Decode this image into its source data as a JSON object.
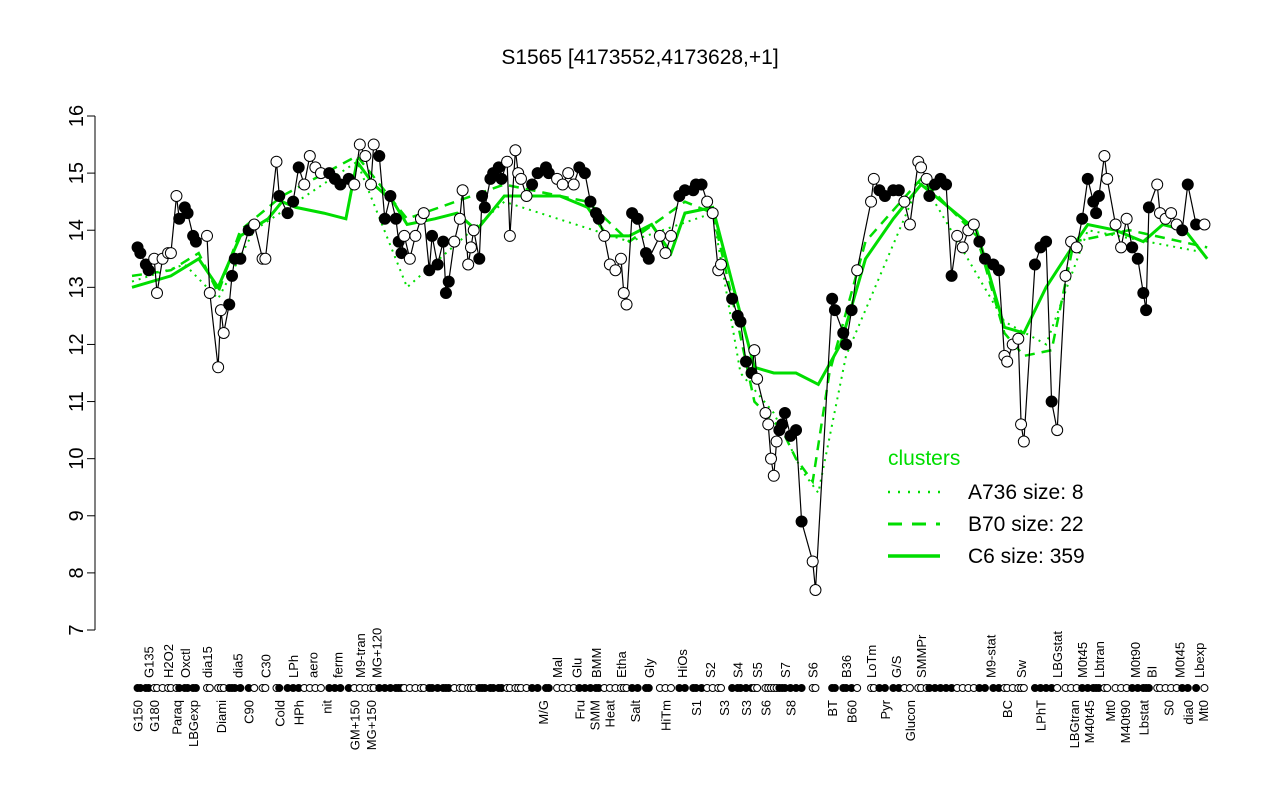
{
  "chart_data": {
    "type": "scatter",
    "title": "S1565 [4173552,4173628,+1]",
    "xlabel": "",
    "ylabel": "",
    "ylim": [
      7,
      16
    ],
    "yticks": [
      7,
      8,
      9,
      10,
      11,
      12,
      13,
      14,
      15,
      16
    ],
    "grid": false,
    "legend": {
      "title": "clusters",
      "placement": "right",
      "entries": [
        {
          "label": "A736 size: 8",
          "style": "dotted"
        },
        {
          "label": "B70 size: 22",
          "style": "dashed"
        },
        {
          "label": "C6 size: 359",
          "style": "solid"
        }
      ]
    },
    "colors": {
      "cluster_lines": "#00dd00",
      "points": "#000000"
    },
    "x_labels_lower": [
      [
        "G150",
        3
      ],
      [
        "G180",
        9
      ],
      [
        "Paraq",
        17
      ],
      [
        "LBGexp",
        23
      ],
      [
        "Diami",
        33
      ],
      [
        "C90",
        43
      ],
      [
        "Cold",
        54
      ],
      [
        "HPh",
        61
      ],
      [
        "nit",
        71
      ],
      [
        "GM+150",
        81
      ],
      [
        "MG+150",
        87
      ],
      [
        "M/G",
        149
      ],
      [
        "Fru",
        162
      ],
      [
        "SMM",
        166
      ],
      [
        "Heat",
        171
      ],
      [
        "Salt",
        182
      ],
      [
        "HiTm",
        193
      ],
      [
        "S1",
        204
      ],
      [
        "S3",
        214
      ],
      [
        "S3",
        222
      ],
      [
        "S6",
        229
      ],
      [
        "S8",
        238
      ],
      [
        "BT",
        253
      ],
      [
        "B60",
        260
      ],
      [
        "Pyr",
        272
      ],
      [
        "Glucon",
        281
      ],
      [
        "BC",
        316
      ],
      [
        "LPhT",
        328
      ],
      [
        "LBGtran",
        340
      ],
      [
        "M40t45",
        345
      ],
      [
        "Mt0",
        353
      ],
      [
        "M40t90",
        356
      ],
      [
        "Lbstat",
        365
      ],
      [
        "S0",
        374
      ],
      [
        "dia0",
        381
      ],
      [
        "Mt0",
        384
      ]
    ],
    "x_labels_upper": [
      [
        "G135",
        7
      ],
      [
        "H2O2",
        14
      ],
      [
        "Oxctl",
        20
      ],
      [
        "dia15",
        28
      ],
      [
        "dia5",
        39
      ],
      [
        "C30",
        49
      ],
      [
        "LPh",
        59
      ],
      [
        "aero",
        66
      ],
      [
        "ferm",
        75
      ],
      [
        "M9-tran",
        83
      ],
      [
        "MG+120",
        89
      ],
      [
        "Mal",
        154
      ],
      [
        "Glu",
        161
      ],
      [
        "BMM",
        168
      ],
      [
        "Etha",
        177
      ],
      [
        "Gly",
        187
      ],
      [
        "HiOs",
        199
      ],
      [
        "S2",
        209
      ],
      [
        "S4",
        219
      ],
      [
        "S5",
        226
      ],
      [
        "S7",
        236
      ],
      [
        "S6",
        246
      ],
      [
        "B36",
        258
      ],
      [
        "LoTm",
        267
      ],
      [
        "G/S",
        276
      ],
      [
        "SMMPr",
        285
      ],
      [
        "M9-stat",
        310
      ],
      [
        "Sw",
        321
      ],
      [
        "LBGstat",
        334
      ],
      [
        "M0t45",
        343
      ],
      [
        "Lbtran",
        349
      ],
      [
        "M0t90",
        362
      ],
      [
        "BI",
        368
      ],
      [
        "M0t45",
        378
      ],
      [
        "Lbexp",
        385
      ]
    ],
    "points": [
      [
        3,
        13.7
      ],
      [
        4,
        13.6
      ],
      [
        6,
        13.4
      ],
      [
        7,
        13.3
      ],
      [
        9,
        13.5
      ],
      [
        10,
        12.9
      ],
      [
        12,
        13.5
      ],
      [
        14,
        13.6
      ],
      [
        15,
        13.6
      ],
      [
        17,
        14.6
      ],
      [
        18,
        14.2
      ],
      [
        20,
        14.4
      ],
      [
        21,
        14.3
      ],
      [
        23,
        13.9
      ],
      [
        24,
        13.8
      ],
      [
        28,
        13.9
      ],
      [
        29,
        12.9
      ],
      [
        32,
        11.6
      ],
      [
        33,
        12.6
      ],
      [
        34,
        12.2
      ],
      [
        36,
        12.7
      ],
      [
        37,
        13.2
      ],
      [
        38,
        13.5
      ],
      [
        40,
        13.5
      ],
      [
        43,
        14.0
      ],
      [
        45,
        14.1
      ],
      [
        48,
        13.5
      ],
      [
        49,
        13.5
      ],
      [
        53,
        15.2
      ],
      [
        54,
        14.6
      ],
      [
        57,
        14.3
      ],
      [
        59,
        14.5
      ],
      [
        61,
        15.1
      ],
      [
        63,
        14.8
      ],
      [
        65,
        15.3
      ],
      [
        67,
        15.1
      ],
      [
        69,
        15.0
      ],
      [
        72,
        15.0
      ],
      [
        74,
        14.9
      ],
      [
        76,
        14.8
      ],
      [
        79,
        14.9
      ],
      [
        81,
        14.8
      ],
      [
        83,
        15.5
      ],
      [
        85,
        15.3
      ],
      [
        87,
        14.8
      ],
      [
        88,
        15.5
      ],
      [
        90,
        15.3
      ],
      [
        92,
        14.2
      ],
      [
        94,
        14.6
      ],
      [
        96,
        14.2
      ],
      [
        97,
        13.8
      ],
      [
        98,
        13.6
      ],
      [
        99,
        13.9
      ],
      [
        101,
        13.5
      ],
      [
        103,
        13.9
      ],
      [
        105,
        14.2
      ],
      [
        106,
        14.3
      ],
      [
        108,
        13.3
      ],
      [
        109,
        13.9
      ],
      [
        111,
        13.4
      ],
      [
        113,
        13.8
      ],
      [
        114,
        12.9
      ],
      [
        115,
        13.1
      ],
      [
        117,
        13.8
      ],
      [
        119,
        14.2
      ],
      [
        120,
        14.7
      ],
      [
        122,
        13.4
      ],
      [
        123,
        13.7
      ],
      [
        124,
        14.0
      ],
      [
        126,
        13.5
      ],
      [
        127,
        14.6
      ],
      [
        128,
        14.4
      ],
      [
        130,
        14.9
      ],
      [
        131,
        15.0
      ],
      [
        133,
        15.1
      ],
      [
        134,
        14.9
      ],
      [
        136,
        15.2
      ],
      [
        137,
        13.9
      ],
      [
        139,
        15.4
      ],
      [
        140,
        15.0
      ],
      [
        141,
        14.9
      ],
      [
        143,
        14.6
      ],
      [
        145,
        14.8
      ],
      [
        147,
        15.0
      ],
      [
        150,
        15.1
      ],
      [
        151,
        15.0
      ],
      [
        154,
        14.9
      ],
      [
        156,
        14.8
      ],
      [
        158,
        15.0
      ],
      [
        160,
        14.8
      ],
      [
        162,
        15.1
      ],
      [
        164,
        15.0
      ],
      [
        166,
        14.5
      ],
      [
        168,
        14.3
      ],
      [
        169,
        14.2
      ],
      [
        171,
        13.9
      ],
      [
        173,
        13.4
      ],
      [
        175,
        13.3
      ],
      [
        177,
        13.5
      ],
      [
        178,
        12.9
      ],
      [
        179,
        12.7
      ],
      [
        181,
        14.3
      ],
      [
        183,
        14.2
      ],
      [
        186,
        13.6
      ],
      [
        187,
        13.5
      ],
      [
        191,
        13.9
      ],
      [
        193,
        13.6
      ],
      [
        195,
        13.9
      ],
      [
        198,
        14.6
      ],
      [
        200,
        14.7
      ],
      [
        203,
        14.7
      ],
      [
        204,
        14.8
      ],
      [
        206,
        14.8
      ],
      [
        208,
        14.5
      ],
      [
        210,
        14.3
      ],
      [
        212,
        13.3
      ],
      [
        213,
        13.4
      ],
      [
        217,
        12.8
      ],
      [
        219,
        12.5
      ],
      [
        220,
        12.4
      ],
      [
        222,
        11.7
      ],
      [
        224,
        11.5
      ],
      [
        225,
        11.9
      ],
      [
        226,
        11.4
      ],
      [
        229,
        10.8
      ],
      [
        230,
        10.6
      ],
      [
        231,
        10.0
      ],
      [
        232,
        9.7
      ],
      [
        233,
        10.3
      ],
      [
        234,
        10.5
      ],
      [
        235,
        10.6
      ],
      [
        236,
        10.8
      ],
      [
        238,
        10.4
      ],
      [
        240,
        10.5
      ],
      [
        242,
        8.9
      ],
      [
        246,
        8.2
      ],
      [
        247,
        7.7
      ],
      [
        253,
        12.8
      ],
      [
        254,
        12.6
      ],
      [
        257,
        12.2
      ],
      [
        258,
        12.0
      ],
      [
        260,
        12.6
      ],
      [
        262,
        13.3
      ],
      [
        267,
        14.5
      ],
      [
        268,
        14.9
      ],
      [
        270,
        14.7
      ],
      [
        272,
        14.6
      ],
      [
        275,
        14.7
      ],
      [
        277,
        14.7
      ],
      [
        279,
        14.5
      ],
      [
        281,
        14.1
      ],
      [
        284,
        15.2
      ],
      [
        285,
        15.1
      ],
      [
        287,
        14.9
      ],
      [
        288,
        14.6
      ],
      [
        290,
        14.8
      ],
      [
        292,
        14.9
      ],
      [
        294,
        14.8
      ],
      [
        296,
        13.2
      ],
      [
        298,
        13.9
      ],
      [
        300,
        13.7
      ],
      [
        302,
        14.0
      ],
      [
        304,
        14.1
      ],
      [
        306,
        13.8
      ],
      [
        308,
        13.5
      ],
      [
        311,
        13.4
      ],
      [
        313,
        13.3
      ],
      [
        315,
        11.8
      ],
      [
        316,
        11.7
      ],
      [
        318,
        12.0
      ],
      [
        320,
        12.1
      ],
      [
        321,
        10.6
      ],
      [
        322,
        10.3
      ],
      [
        326,
        13.4
      ],
      [
        328,
        13.7
      ],
      [
        330,
        13.8
      ],
      [
        332,
        11.0
      ],
      [
        334,
        10.5
      ],
      [
        337,
        13.2
      ],
      [
        339,
        13.8
      ],
      [
        341,
        13.7
      ],
      [
        343,
        14.2
      ],
      [
        345,
        14.9
      ],
      [
        347,
        14.5
      ],
      [
        348,
        14.3
      ],
      [
        349,
        14.6
      ],
      [
        351,
        15.3
      ],
      [
        352,
        14.9
      ],
      [
        355,
        14.1
      ],
      [
        357,
        13.7
      ],
      [
        359,
        14.2
      ],
      [
        361,
        13.7
      ],
      [
        363,
        13.5
      ],
      [
        365,
        12.9
      ],
      [
        366,
        12.6
      ],
      [
        367,
        14.4
      ],
      [
        370,
        14.8
      ],
      [
        371,
        14.3
      ],
      [
        373,
        14.2
      ],
      [
        375,
        14.3
      ],
      [
        377,
        14.1
      ],
      [
        379,
        14.0
      ],
      [
        381,
        14.8
      ],
      [
        384,
        14.1
      ],
      [
        387,
        14.1
      ]
    ],
    "cluster_lines": {
      "C6": [
        [
          1,
          13.0
        ],
        [
          15,
          13.2
        ],
        [
          25,
          13.5
        ],
        [
          32,
          13.0
        ],
        [
          40,
          13.9
        ],
        [
          50,
          14.2
        ],
        [
          55,
          14.5
        ],
        [
          60,
          14.4
        ],
        [
          70,
          14.3
        ],
        [
          78,
          14.2
        ],
        [
          82,
          15.2
        ],
        [
          88,
          14.8
        ],
        [
          95,
          14.5
        ],
        [
          100,
          14.1
        ],
        [
          110,
          14.2
        ],
        [
          118,
          14.3
        ],
        [
          125,
          14.0
        ],
        [
          135,
          14.6
        ],
        [
          145,
          14.6
        ],
        [
          155,
          14.6
        ],
        [
          165,
          14.4
        ],
        [
          172,
          13.9
        ],
        [
          180,
          13.9
        ],
        [
          188,
          14.1
        ],
        [
          195,
          13.6
        ],
        [
          200,
          14.3
        ],
        [
          210,
          14.4
        ],
        [
          218,
          12.9
        ],
        [
          225,
          11.6
        ],
        [
          232,
          11.5
        ],
        [
          240,
          11.5
        ],
        [
          248,
          11.3
        ],
        [
          256,
          12.0
        ],
        [
          265,
          13.5
        ],
        [
          275,
          14.2
        ],
        [
          285,
          14.8
        ],
        [
          295,
          14.4
        ],
        [
          305,
          14.0
        ],
        [
          315,
          12.3
        ],
        [
          322,
          12.2
        ],
        [
          330,
          13.0
        ],
        [
          338,
          13.6
        ],
        [
          345,
          14.1
        ],
        [
          355,
          14.0
        ],
        [
          365,
          13.8
        ],
        [
          372,
          14.1
        ],
        [
          380,
          14.0
        ],
        [
          388,
          13.5
        ]
      ],
      "B70": [
        [
          1,
          13.2
        ],
        [
          15,
          13.3
        ],
        [
          25,
          13.6
        ],
        [
          32,
          12.9
        ],
        [
          40,
          14.0
        ],
        [
          55,
          14.6
        ],
        [
          82,
          15.3
        ],
        [
          100,
          14.2
        ],
        [
          135,
          14.8
        ],
        [
          165,
          14.5
        ],
        [
          180,
          13.8
        ],
        [
          200,
          14.5
        ],
        [
          210,
          14.3
        ],
        [
          218,
          12.6
        ],
        [
          225,
          11.0
        ],
        [
          235,
          10.5
        ],
        [
          240,
          10.0
        ],
        [
          246,
          9.6
        ],
        [
          252,
          11.5
        ],
        [
          265,
          13.8
        ],
        [
          285,
          14.9
        ],
        [
          305,
          13.9
        ],
        [
          315,
          12.2
        ],
        [
          322,
          11.8
        ],
        [
          332,
          11.9
        ],
        [
          340,
          13.8
        ],
        [
          360,
          14.0
        ],
        [
          388,
          13.7
        ]
      ],
      "A736": [
        [
          1,
          13.1
        ],
        [
          20,
          13.4
        ],
        [
          32,
          12.8
        ],
        [
          45,
          14.0
        ],
        [
          82,
          15.2
        ],
        [
          100,
          13.0
        ],
        [
          135,
          14.5
        ],
        [
          180,
          13.8
        ],
        [
          210,
          14.3
        ],
        [
          220,
          11.5
        ],
        [
          232,
          10.8
        ],
        [
          242,
          9.8
        ],
        [
          248,
          9.4
        ],
        [
          258,
          11.8
        ],
        [
          285,
          14.9
        ],
        [
          315,
          12.4
        ],
        [
          330,
          12.0
        ],
        [
          345,
          14.0
        ],
        [
          388,
          13.6
        ]
      ]
    }
  }
}
